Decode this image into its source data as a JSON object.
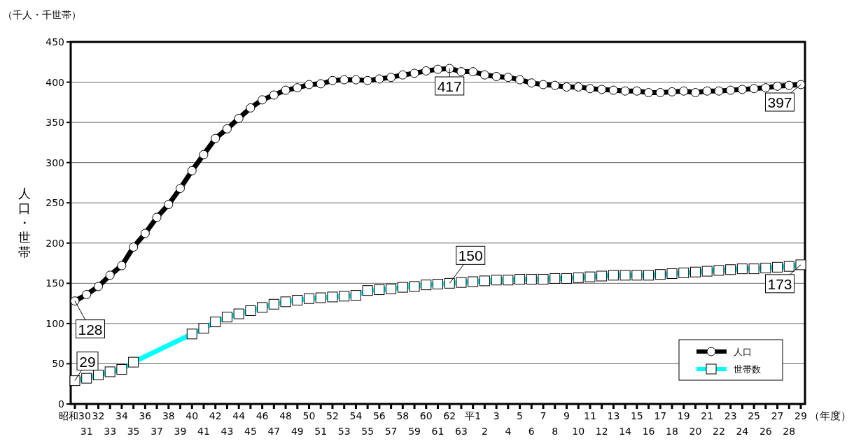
{
  "chart_data": {
    "type": "line",
    "ylabel": "人口・世帯",
    "xlabel": "（年度）",
    "annotations": [
      "（千人・千世帯）"
    ],
    "categories": [
      "昭和30",
      "31",
      "32",
      "33",
      "34",
      "35",
      "36",
      "37",
      "38",
      "39",
      "40",
      "41",
      "42",
      "43",
      "44",
      "45",
      "46",
      "47",
      "48",
      "49",
      "50",
      "51",
      "52",
      "53",
      "54",
      "55",
      "56",
      "57",
      "58",
      "59",
      "60",
      "61",
      "62",
      "63",
      "平1",
      "2",
      "3",
      "4",
      "5",
      "6",
      "7",
      "8",
      "9",
      "10",
      "11",
      "12",
      "13",
      "14",
      "15",
      "16",
      "17",
      "18",
      "19",
      "20",
      "21",
      "22",
      "23",
      "24",
      "25",
      "26",
      "27",
      "28",
      "29"
    ],
    "ylim": [
      0,
      450
    ],
    "yticks": [
      0,
      50,
      100,
      150,
      200,
      250,
      300,
      350,
      400,
      450
    ],
    "grid": "y",
    "legend": "bottom right",
    "line_style": "solid",
    "series": [
      {
        "name": "人口",
        "color": "#000000",
        "marker": "circle",
        "values": [
          128,
          136,
          146,
          160,
          172,
          195,
          212,
          232,
          248,
          268,
          290,
          310,
          330,
          342,
          355,
          368,
          378,
          384,
          390,
          393,
          397,
          398,
          402,
          403,
          403,
          402,
          404,
          406,
          409,
          411,
          414,
          416,
          417,
          413,
          413,
          409,
          407,
          406,
          403,
          399,
          397,
          396,
          394,
          394,
          392,
          391,
          390,
          389,
          389,
          387,
          387,
          388,
          389,
          387,
          389,
          389,
          390,
          391,
          392,
          393,
          395,
          396,
          397
        ],
        "value_labels": [
          "128",
          null,
          null,
          null,
          null,
          null,
          null,
          null,
          null,
          null,
          null,
          null,
          null,
          null,
          null,
          null,
          null,
          null,
          null,
          null,
          null,
          null,
          null,
          null,
          null,
          null,
          null,
          null,
          null,
          null,
          null,
          null,
          "417",
          null,
          null,
          null,
          null,
          null,
          null,
          null,
          null,
          null,
          null,
          null,
          null,
          null,
          null,
          null,
          null,
          null,
          null,
          null,
          null,
          null,
          null,
          null,
          null,
          null,
          null,
          null,
          null,
          null,
          "397"
        ]
      },
      {
        "name": "世帯数",
        "color": "#00ffff",
        "marker": "square",
        "values": [
          29,
          32,
          36,
          40,
          43,
          52,
          null,
          null,
          null,
          null,
          87,
          94,
          102,
          108,
          112,
          116,
          120,
          124,
          127,
          129,
          131,
          132,
          133,
          134,
          135,
          141,
          142,
          143,
          145,
          146,
          148,
          149,
          150,
          151,
          152,
          153,
          154,
          154,
          155,
          155,
          155,
          156,
          156,
          157,
          158,
          159,
          160,
          160,
          160,
          160,
          161,
          162,
          163,
          164,
          165,
          166,
          167,
          168,
          168,
          169,
          170,
          171,
          173
        ],
        "value_labels": [
          "29",
          null,
          null,
          null,
          null,
          null,
          null,
          null,
          null,
          null,
          null,
          null,
          null,
          null,
          null,
          null,
          null,
          null,
          null,
          null,
          null,
          null,
          null,
          null,
          null,
          null,
          null,
          null,
          null,
          null,
          null,
          null,
          "150",
          null,
          null,
          null,
          null,
          null,
          null,
          null,
          null,
          null,
          null,
          null,
          null,
          null,
          null,
          null,
          null,
          null,
          null,
          null,
          null,
          null,
          null,
          null,
          null,
          null,
          null,
          null,
          null,
          null,
          "173"
        ]
      }
    ]
  }
}
